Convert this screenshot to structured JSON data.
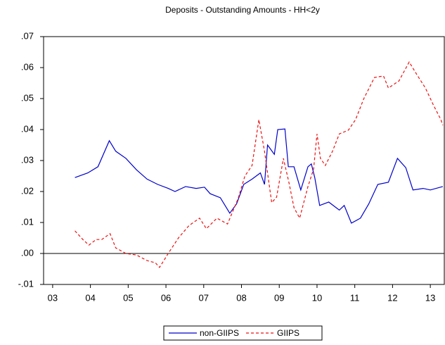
{
  "chart_data": {
    "type": "line",
    "title": "Deposits - Outstanding Amounts - HH<2y",
    "xlim": [
      2003.26,
      2013.87
    ],
    "ylim": [
      -0.01,
      0.07
    ],
    "xticks": [
      {
        "value": 2003.5,
        "label": "03"
      },
      {
        "value": 2004.5,
        "label": "04"
      },
      {
        "value": 2005.5,
        "label": "05"
      },
      {
        "value": 2006.5,
        "label": "06"
      },
      {
        "value": 2007.5,
        "label": "07"
      },
      {
        "value": 2008.5,
        "label": "08"
      },
      {
        "value": 2009.5,
        "label": "09"
      },
      {
        "value": 2010.5,
        "label": "10"
      },
      {
        "value": 2011.5,
        "label": "11"
      },
      {
        "value": 2012.5,
        "label": "12"
      },
      {
        "value": 2013.5,
        "label": "13"
      }
    ],
    "yticks": [
      {
        "value": -0.01,
        "label": "-.01"
      },
      {
        "value": 0,
        "label": ".00"
      },
      {
        "value": 0.01,
        "label": ".01"
      },
      {
        "value": 0.02,
        "label": ".02"
      },
      {
        "value": 0.03,
        "label": ".03"
      },
      {
        "value": 0.04,
        "label": ".04"
      },
      {
        "value": 0.05,
        "label": ".05"
      },
      {
        "value": 0.06,
        "label": ".06"
      },
      {
        "value": 0.07,
        "label": ".07"
      }
    ],
    "legend": "bottom",
    "series": [
      {
        "name": "non-GIIPS",
        "color": "#0000cc",
        "dashed": false,
        "x": [
          2004.09,
          2004.43,
          2004.7,
          2005.0,
          2005.17,
          2005.44,
          2005.72,
          2006.0,
          2006.28,
          2006.56,
          2006.74,
          2007.02,
          2007.3,
          2007.52,
          2007.67,
          2007.94,
          2008.19,
          2008.37,
          2008.56,
          2008.78,
          2009.0,
          2009.11,
          2009.19,
          2009.37,
          2009.46,
          2009.65,
          2009.74,
          2009.89,
          2010.07,
          2010.26,
          2010.35,
          2010.44,
          2010.57,
          2010.81,
          2011.09,
          2011.22,
          2011.41,
          2011.65,
          2011.87,
          2012.11,
          2012.39,
          2012.63,
          2012.85,
          2013.04,
          2013.31,
          2013.5,
          2013.83
        ],
        "values": [
          0.0245,
          0.026,
          0.028,
          0.0364,
          0.033,
          0.0307,
          0.027,
          0.024,
          0.0223,
          0.021,
          0.02,
          0.0216,
          0.021,
          0.0214,
          0.0193,
          0.018,
          0.013,
          0.016,
          0.0223,
          0.024,
          0.026,
          0.0223,
          0.035,
          0.032,
          0.04,
          0.0402,
          0.028,
          0.028,
          0.0205,
          0.028,
          0.0289,
          0.0245,
          0.0155,
          0.0166,
          0.014,
          0.0155,
          0.0098,
          0.0114,
          0.016,
          0.0223,
          0.023,
          0.0307,
          0.0277,
          0.0205,
          0.021,
          0.0205,
          0.0216
        ]
      },
      {
        "name": "GIIPS",
        "color": "#ee1111",
        "dashed": true,
        "x": [
          2004.09,
          2004.3,
          2004.46,
          2004.65,
          2004.8,
          2005.02,
          2005.17,
          2005.44,
          2005.72,
          2006.0,
          2006.22,
          2006.33,
          2006.56,
          2006.83,
          2007.11,
          2007.39,
          2007.57,
          2007.85,
          2008.13,
          2008.41,
          2008.59,
          2008.78,
          2008.96,
          2009.11,
          2009.3,
          2009.43,
          2009.61,
          2009.76,
          2009.89,
          2010.04,
          2010.26,
          2010.41,
          2010.5,
          2010.59,
          2010.72,
          2010.91,
          2011.09,
          2011.33,
          2011.52,
          2011.74,
          2012.02,
          2012.26,
          2012.39,
          2012.67,
          2012.94,
          2013.13,
          2013.37,
          2013.59,
          2013.78,
          2013.83
        ],
        "values": [
          0.0073,
          0.0045,
          0.0027,
          0.0045,
          0.0045,
          0.0064,
          0.0018,
          0,
          -0.0005,
          -0.0023,
          -0.003,
          -0.0045,
          0,
          0.005,
          0.009,
          0.0114,
          0.008,
          0.0114,
          0.0095,
          0.0177,
          0.025,
          0.0284,
          0.0432,
          0.033,
          0.0164,
          0.0182,
          0.0307,
          0.0227,
          0.0148,
          0.0114,
          0.0216,
          0.0273,
          0.0386,
          0.0307,
          0.0284,
          0.033,
          0.0386,
          0.0398,
          0.0432,
          0.05,
          0.0568,
          0.0573,
          0.0534,
          0.0557,
          0.0618,
          0.058,
          0.0534,
          0.0477,
          0.0432,
          0.0414
        ]
      }
    ]
  }
}
